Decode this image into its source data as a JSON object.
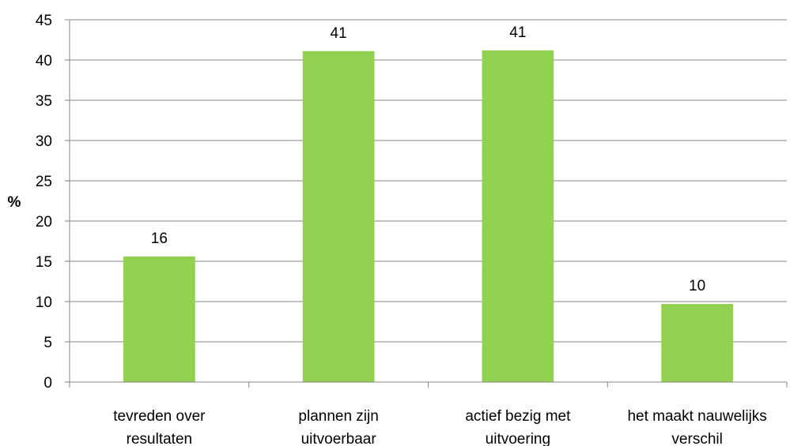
{
  "chart_data": {
    "type": "bar",
    "title": "",
    "xlabel": "",
    "ylabel": "%",
    "ylim": [
      0,
      45
    ],
    "yticks": [
      0,
      5,
      10,
      15,
      20,
      25,
      30,
      35,
      40,
      45
    ],
    "grid": true,
    "categories": [
      [
        "tevreden over",
        "resultaten"
      ],
      [
        "plannen zijn",
        "uitvoerbaar"
      ],
      [
        "actief bezig met",
        "uitvoering"
      ],
      [
        "het maakt nauwelijks",
        "verschil"
      ]
    ],
    "values": [
      15.6,
      41.1,
      41.2,
      9.7
    ],
    "data_labels": [
      "16",
      "41",
      "41",
      "10"
    ],
    "colors": {
      "bar": "#92D050",
      "grid": "#868686",
      "axis": "#868686"
    }
  }
}
